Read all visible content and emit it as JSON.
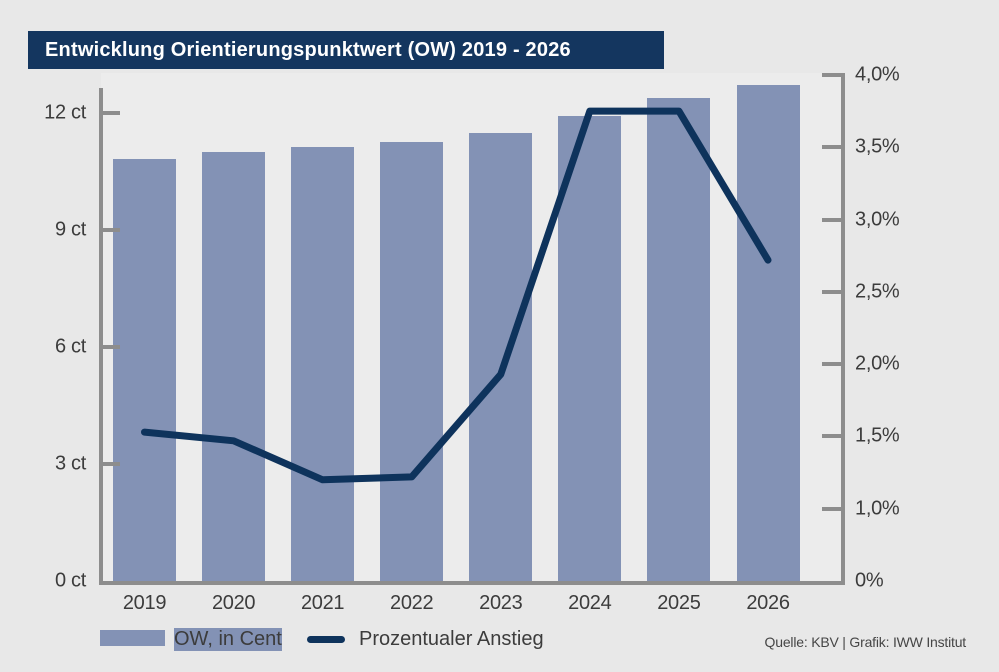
{
  "title": "Entwicklung Orientierungspunktwert (OW) 2019 - 2026",
  "source": "Quelle: KBV | Grafik: IWW Institut",
  "legend": {
    "bar_label": "OW, in Cent",
    "line_label": "Prozentualer Anstieg"
  },
  "colors": {
    "background": "#e8e8e8",
    "plot_background": "#ececec",
    "bar": "#8392b5",
    "line": "#0e335c",
    "banner": "#14365f",
    "banner_text": "#ffffff",
    "axis": "#8d8d8d",
    "text": "#3c3c3c",
    "source_text": "#464646"
  },
  "chart_data": {
    "type": "bar",
    "subtype": "combo bar + line, dual axis",
    "title": "Entwicklung Orientierungspunktwert (OW) 2019 - 2026",
    "categories": [
      "2019",
      "2020",
      "2021",
      "2022",
      "2023",
      "2024",
      "2025",
      "2026"
    ],
    "series": [
      {
        "name": "OW, in Cent",
        "type": "bar",
        "axis": "left",
        "unit": "ct",
        "values": [
          10.82,
          10.99,
          11.12,
          11.27,
          11.49,
          11.93,
          12.39,
          12.73
        ]
      },
      {
        "name": "Prozentualer Anstieg",
        "type": "line",
        "axis": "right",
        "unit": "%",
        "values": [
          1.53,
          1.47,
          1.2,
          1.22,
          1.93,
          3.75,
          3.75,
          2.72
        ]
      }
    ],
    "left_axis": {
      "tick_labels": [
        "0 ct",
        "3 ct",
        "6 ct",
        "9 ct",
        "12 ct"
      ],
      "tick_values": [
        0,
        3,
        6,
        9,
        12
      ],
      "range": [
        0,
        12
      ]
    },
    "right_axis": {
      "tick_labels": [
        "0%",
        "1,0%",
        "1,5%",
        "2,0%",
        "2,5%",
        "3,0%",
        "3,5%",
        "4,0%"
      ],
      "tick_values": [
        0,
        1.0,
        1.5,
        2.0,
        2.5,
        3.0,
        3.5,
        4.0
      ],
      "note": "tick labels equally spaced on axis (non-linear step between 0% and 1,0%)"
    },
    "legend_position": "bottom",
    "grid": false
  }
}
